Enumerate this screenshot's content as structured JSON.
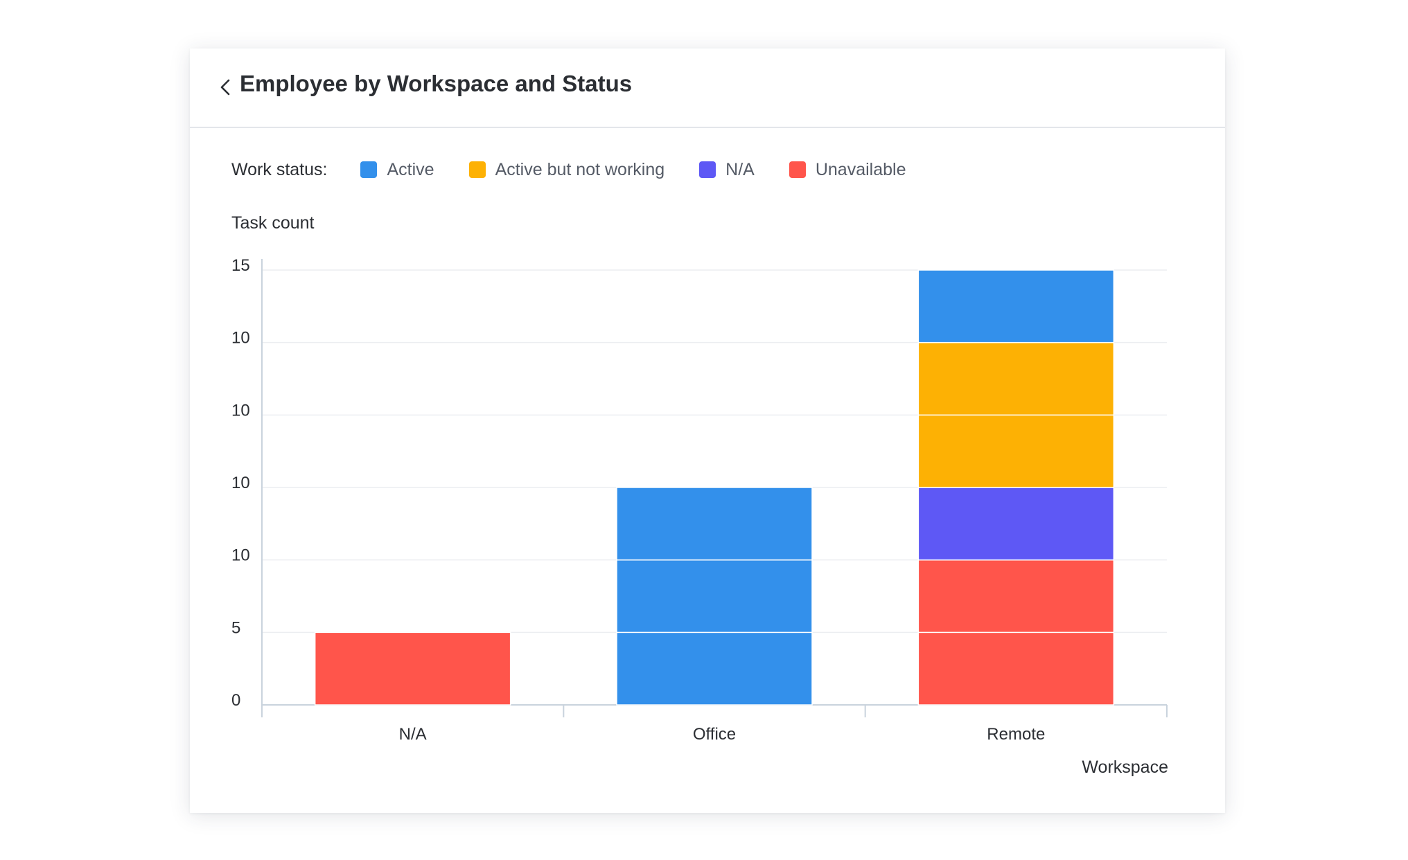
{
  "header": {
    "title": "Employee by Workspace and Status",
    "back_icon": "chevron-left-icon"
  },
  "legend": {
    "title": "Work status:",
    "items": [
      {
        "label": "Active",
        "color": "#3390EB"
      },
      {
        "label": "Active but not working",
        "color": "#FDB104"
      },
      {
        "label": "N/A",
        "color": "#5E58F5"
      },
      {
        "label": "Unavailable",
        "color": "#FF554B"
      }
    ]
  },
  "chart_data": {
    "type": "bar",
    "stacked": true,
    "title": "Employee by Workspace and Status",
    "xlabel": "Workspace",
    "ylabel": "Task count",
    "categories": [
      "N/A",
      "Office",
      "Remote"
    ],
    "yticks": [
      "0",
      "5",
      "10",
      "10",
      "10",
      "10",
      "15"
    ],
    "ylim": [
      0,
      30
    ],
    "grid": true,
    "legend_position": "top",
    "series": [
      {
        "name": "Unavailable",
        "color": "#FF554B",
        "segments": [
          [
            5
          ],
          [],
          [
            5,
            5
          ]
        ]
      },
      {
        "name": "N/A",
        "color": "#5E58F5",
        "segments": [
          [],
          [],
          [
            5
          ]
        ]
      },
      {
        "name": "Active but not working",
        "color": "#FDB104",
        "segments": [
          [],
          [],
          [
            5,
            5
          ]
        ]
      },
      {
        "name": "Active",
        "color": "#3390EB",
        "segments": [
          [],
          [
            5,
            5,
            5
          ],
          [
            5
          ]
        ]
      }
    ]
  }
}
